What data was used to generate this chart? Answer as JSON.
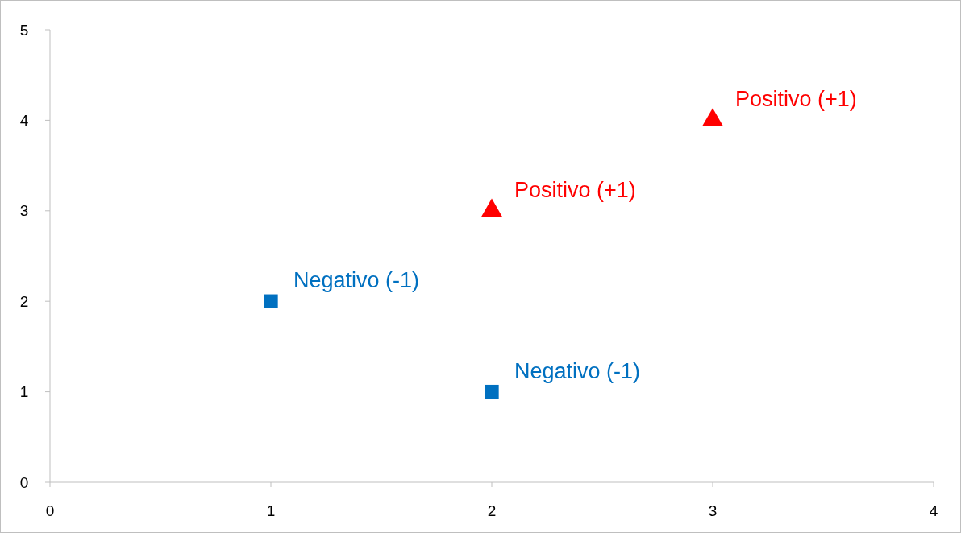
{
  "chart_data": {
    "type": "scatter",
    "xlim": [
      0,
      4
    ],
    "xticks": [
      0,
      1,
      2,
      3,
      4
    ],
    "ylim": [
      0,
      5
    ],
    "yticks": [
      0,
      1,
      2,
      3,
      4,
      5
    ],
    "grid": false,
    "legend": false,
    "series": [
      {
        "name": "Negativo (-1)",
        "color": "#0070c0",
        "marker": "square",
        "x": [
          1,
          2
        ],
        "values": [
          2,
          1
        ]
      },
      {
        "name": "Positivo (+1)",
        "color": "#ff0000",
        "marker": "triangle",
        "x": [
          2,
          3
        ],
        "values": [
          3,
          4
        ]
      }
    ]
  }
}
